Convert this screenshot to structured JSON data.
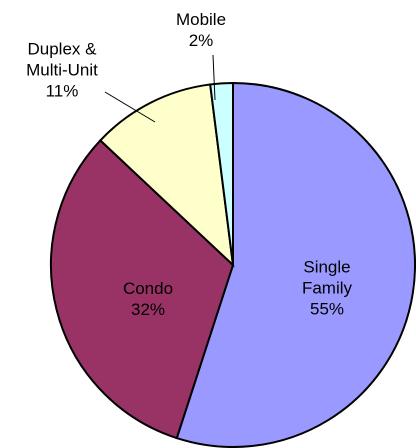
{
  "chart_data": {
    "type": "pie",
    "categories": [
      "Single Family",
      "Condo",
      "Duplex & Multi-Unit",
      "Mobile"
    ],
    "values": [
      55,
      32,
      11,
      2
    ],
    "value_labels": [
      "55%",
      "32%",
      "11%",
      "2%"
    ],
    "colors": [
      "#9999ff",
      "#993366",
      "#ffffcc",
      "#ccffff"
    ]
  }
}
